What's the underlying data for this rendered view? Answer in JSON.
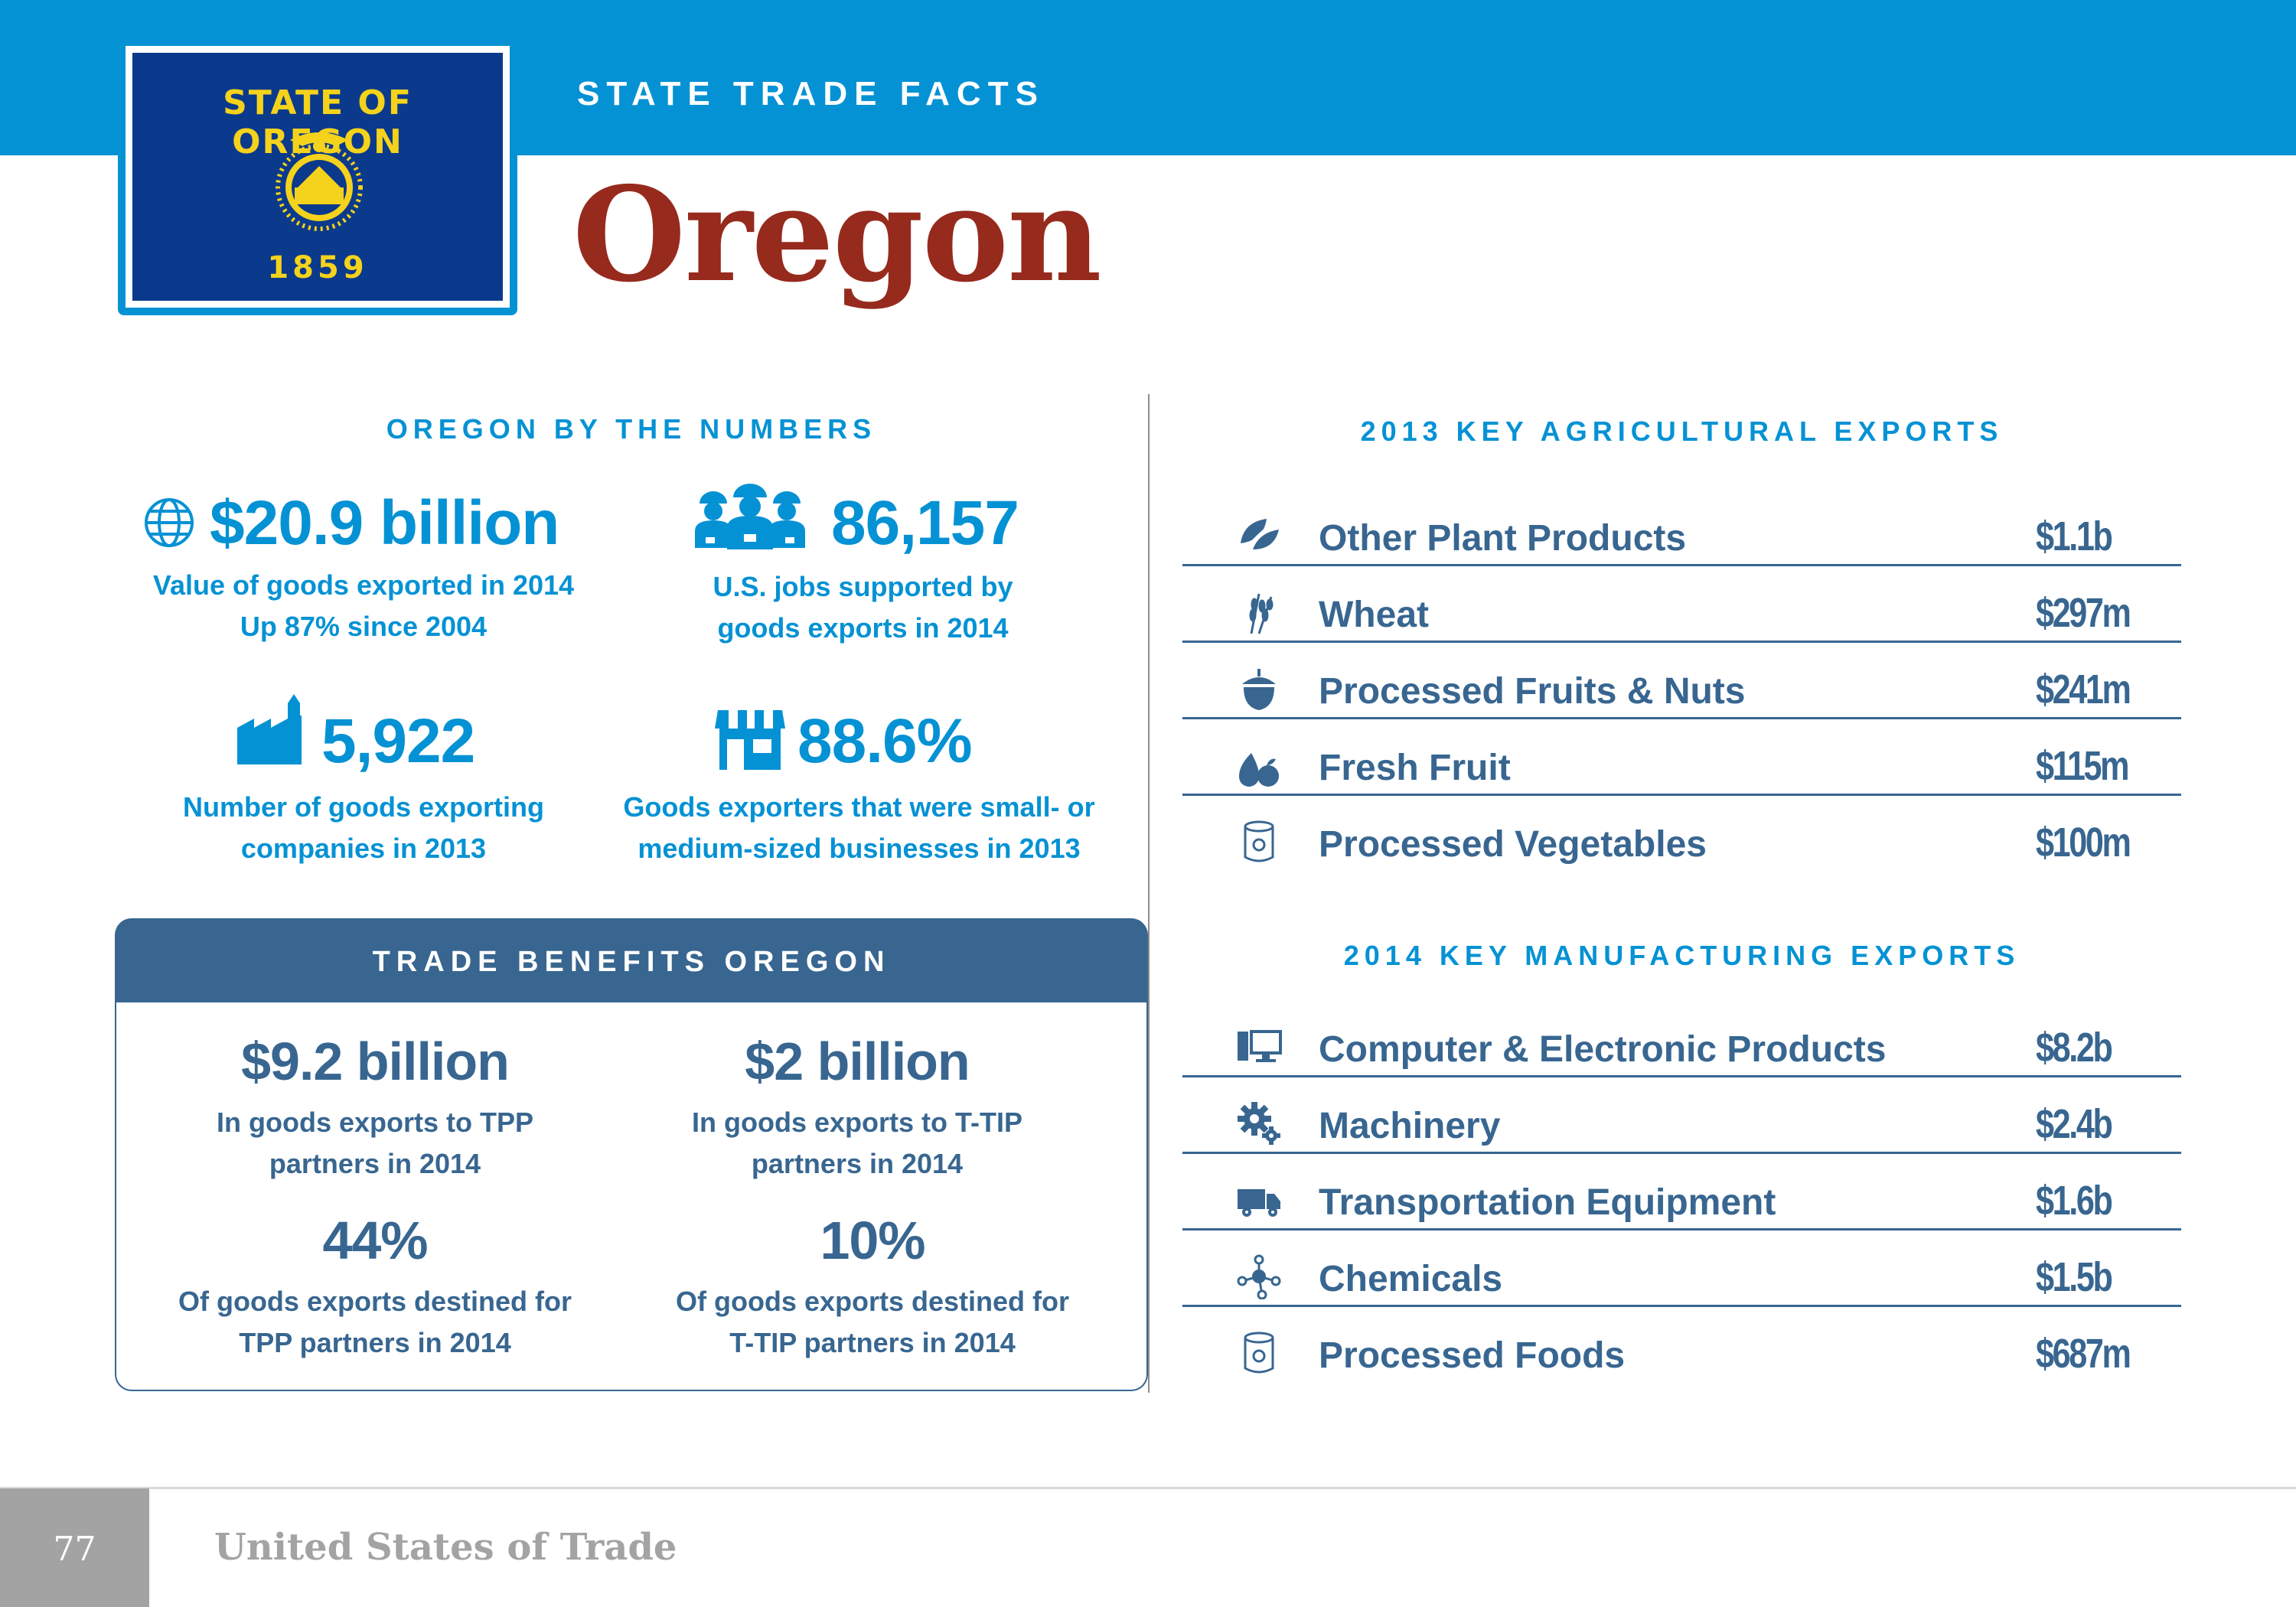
{
  "header": {
    "kicker": "STATE TRADE FACTS",
    "state_name": "Oregon",
    "flag": {
      "title": "STATE OF OREGON",
      "year": "1859"
    },
    "colors": {
      "header_blue": "#0592d4",
      "title_red": "#962a1d",
      "panel_blue": "#386690"
    }
  },
  "by_the_numbers": {
    "title": "OREGON BY THE NUMBERS",
    "stats": [
      {
        "icon": "globe-icon",
        "value": "$20.9 billion",
        "desc_1": "Value of goods exported in 2014",
        "desc_2": "Up 87% since 2004"
      },
      {
        "icon": "workers-icon",
        "value": "86,157",
        "desc_1": "U.S. jobs supported by",
        "desc_2": "goods exports in 2014"
      },
      {
        "icon": "factory-icon",
        "value": "5,922",
        "desc_1": "Number of goods exporting",
        "desc_2": "companies in 2013"
      },
      {
        "icon": "storefront-icon",
        "value": "88.6%",
        "desc_1": "Goods exporters that were small- or",
        "desc_2": "medium-sized businesses in 2013"
      }
    ]
  },
  "trade_benefits": {
    "title": "TRADE BENEFITS OREGON",
    "stats": [
      {
        "value": "$9.2 billion",
        "desc_1": "In goods exports to TPP",
        "desc_2": "partners in 2014"
      },
      {
        "value": "$2 billion",
        "desc_1": "In goods exports to T-TIP",
        "desc_2": "partners in 2014"
      },
      {
        "value": "44%",
        "desc_1": "Of goods exports destined for",
        "desc_2": "TPP partners in 2014"
      },
      {
        "value": "10%",
        "desc_1": "Of goods exports destined for",
        "desc_2": "T-TIP partners in 2014"
      }
    ]
  },
  "agricultural": {
    "title": "2013 KEY AGRICULTURAL EXPORTS",
    "rows": [
      {
        "icon": "leaf-icon",
        "label": "Other Plant Products",
        "value": "$1.1b"
      },
      {
        "icon": "wheat-icon",
        "label": "Wheat",
        "value": "$297m"
      },
      {
        "icon": "acorn-icon",
        "label": "Processed Fruits & Nuts",
        "value": "$241m"
      },
      {
        "icon": "fruit-icon",
        "label": "Fresh Fruit",
        "value": "$115m"
      },
      {
        "icon": "can-icon",
        "label": "Processed Vegetables",
        "value": "$100m"
      }
    ]
  },
  "manufacturing": {
    "title": "2014 KEY MANUFACTURING EXPORTS",
    "rows": [
      {
        "icon": "computer-icon",
        "label": "Computer & Electronic Products",
        "value": "$8.2b"
      },
      {
        "icon": "gears-icon",
        "label": "Machinery",
        "value": "$2.4b"
      },
      {
        "icon": "truck-icon",
        "label": "Transportation Equipment",
        "value": "$1.6b"
      },
      {
        "icon": "molecule-icon",
        "label": "Chemicals",
        "value": "$1.5b"
      },
      {
        "icon": "can-icon",
        "label": "Processed Foods",
        "value": "$687m"
      }
    ]
  },
  "footer": {
    "page_number": "77",
    "publication": "United States of Trade"
  }
}
